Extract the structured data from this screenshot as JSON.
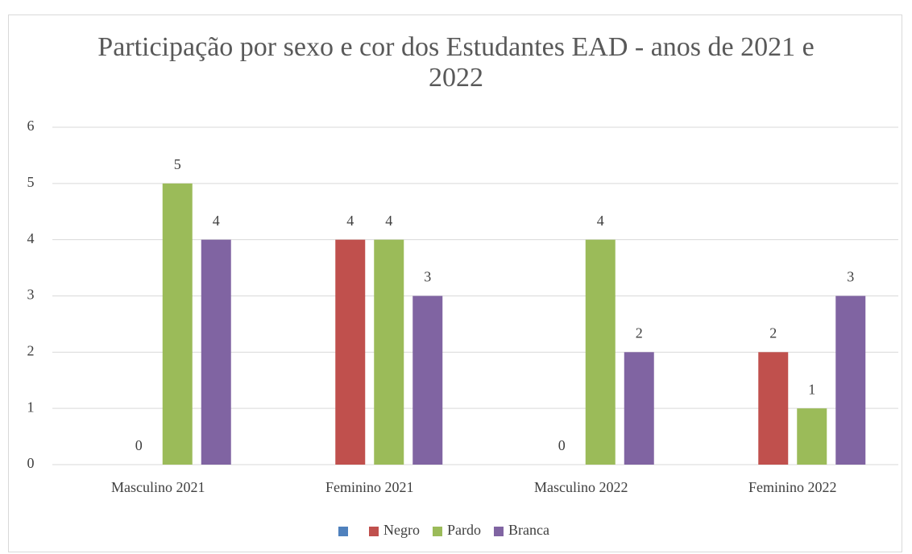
{
  "chart_data": {
    "type": "bar",
    "title": "Participação por sexo e cor dos Estudantes EAD - anos de 2021 e 2022",
    "categories": [
      "Masculino 2021",
      "Feminino 2021",
      "Masculino 2022",
      "Feminino 2022"
    ],
    "series": [
      {
        "name": null,
        "color": "#4f81bd",
        "values": [
          null,
          null,
          null,
          null
        ]
      },
      {
        "name": "Negro",
        "color": "#c0504d",
        "values": [
          0,
          4,
          0,
          2
        ]
      },
      {
        "name": "Pardo",
        "color": "#9bbb59",
        "values": [
          5,
          4,
          4,
          1
        ]
      },
      {
        "name": "Branca",
        "color": "#8064a2",
        "values": [
          4,
          3,
          2,
          3
        ]
      }
    ],
    "ylim": [
      0,
      6
    ],
    "yticks": [
      0,
      1,
      2,
      3,
      4,
      5,
      6
    ],
    "grid": true,
    "legend": "bottom"
  }
}
